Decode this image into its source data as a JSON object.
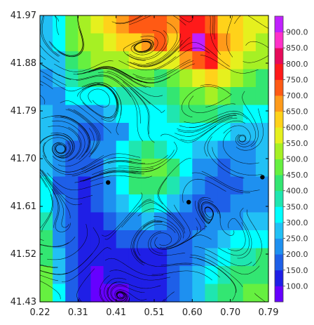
{
  "chart_data": {
    "type": "heatmap",
    "title": "",
    "xlabel": "",
    "ylabel": "",
    "xlim": [
      0.22,
      0.79
    ],
    "ylim": [
      41.43,
      41.97
    ],
    "x_ticks": [
      "0.22",
      "0.31",
      "0.41",
      "0.51",
      "0.60",
      "0.70",
      "0.79"
    ],
    "y_ticks": [
      "41.97",
      "41.88",
      "41.79",
      "41.70",
      "41.61",
      "41.52",
      "41.43"
    ],
    "colorbar": {
      "range": [
        50,
        950
      ],
      "labels": [
        "100.0",
        "150.0",
        "200.0",
        "250.0",
        "300.0",
        "350.0",
        "400.0",
        "450.0",
        "500.0",
        "550.0",
        "600.0",
        "650.0",
        "700.0",
        "750.0",
        "800.0",
        "850.0",
        "900.0"
      ],
      "colors": [
        "#6600ff",
        "#1f1fe6",
        "#1e5fe8",
        "#1e90f0",
        "#22c0f5",
        "#00ffff",
        "#1fe6b0",
        "#33e672",
        "#66f040",
        "#a6f024",
        "#e6f01e",
        "#ffd21a",
        "#ff9a1a",
        "#ff5a14",
        "#ff1a1a",
        "#e60a5a",
        "#ff30c8",
        "#c020ff"
      ]
    },
    "overlay": "streamlines",
    "markers": [
      {
        "x": 0.39,
        "y": 41.655
      },
      {
        "x": 0.591,
        "y": 41.618
      },
      {
        "x": 0.775,
        "y": 41.665
      }
    ],
    "grid": [
      [
        280,
        300,
        470,
        520,
        560,
        620,
        690,
        720,
        740,
        720,
        690,
        750,
        760,
        700,
        640,
        600,
        580,
        560
      ],
      [
        250,
        300,
        460,
        500,
        540,
        580,
        620,
        640,
        680,
        700,
        640,
        760,
        900,
        780,
        660,
        600,
        560,
        520
      ],
      [
        260,
        280,
        440,
        480,
        520,
        520,
        540,
        560,
        560,
        580,
        560,
        660,
        740,
        760,
        640,
        560,
        520,
        500
      ],
      [
        220,
        260,
        380,
        420,
        440,
        460,
        470,
        480,
        460,
        440,
        470,
        520,
        580,
        620,
        560,
        520,
        480,
        440
      ],
      [
        200,
        220,
        320,
        320,
        320,
        340,
        360,
        360,
        360,
        380,
        420,
        460,
        480,
        500,
        460,
        420,
        420,
        400
      ],
      [
        260,
        240,
        240,
        240,
        240,
        260,
        300,
        320,
        320,
        320,
        360,
        400,
        420,
        420,
        380,
        360,
        340,
        320
      ],
      [
        250,
        220,
        200,
        180,
        180,
        200,
        240,
        300,
        300,
        300,
        320,
        340,
        340,
        320,
        300,
        280,
        260,
        260
      ],
      [
        260,
        200,
        180,
        160,
        200,
        240,
        300,
        360,
        400,
        380,
        320,
        300,
        280,
        260,
        240,
        240,
        240,
        260
      ],
      [
        280,
        200,
        160,
        150,
        180,
        260,
        340,
        420,
        460,
        460,
        400,
        320,
        240,
        200,
        180,
        200,
        220,
        260
      ],
      [
        300,
        190,
        150,
        140,
        170,
        240,
        320,
        400,
        440,
        440,
        380,
        280,
        200,
        160,
        160,
        180,
        200,
        240
      ],
      [
        340,
        200,
        150,
        130,
        150,
        200,
        260,
        320,
        360,
        320,
        260,
        200,
        160,
        160,
        180,
        200,
        220,
        240
      ],
      [
        380,
        220,
        150,
        120,
        130,
        160,
        200,
        240,
        260,
        220,
        180,
        160,
        160,
        200,
        220,
        240,
        260,
        280
      ],
      [
        420,
        240,
        160,
        110,
        110,
        130,
        150,
        180,
        180,
        160,
        150,
        160,
        200,
        240,
        280,
        300,
        320,
        340
      ],
      [
        440,
        260,
        160,
        110,
        100,
        110,
        120,
        140,
        140,
        140,
        150,
        180,
        230,
        280,
        320,
        360,
        380,
        420
      ],
      [
        450,
        280,
        170,
        110,
        90,
        100,
        100,
        110,
        120,
        130,
        160,
        200,
        260,
        320,
        360,
        400,
        420,
        440
      ],
      [
        460,
        300,
        180,
        120,
        80,
        90,
        90,
        100,
        110,
        130,
        170,
        220,
        290,
        360,
        400,
        440,
        460,
        480
      ]
    ]
  }
}
